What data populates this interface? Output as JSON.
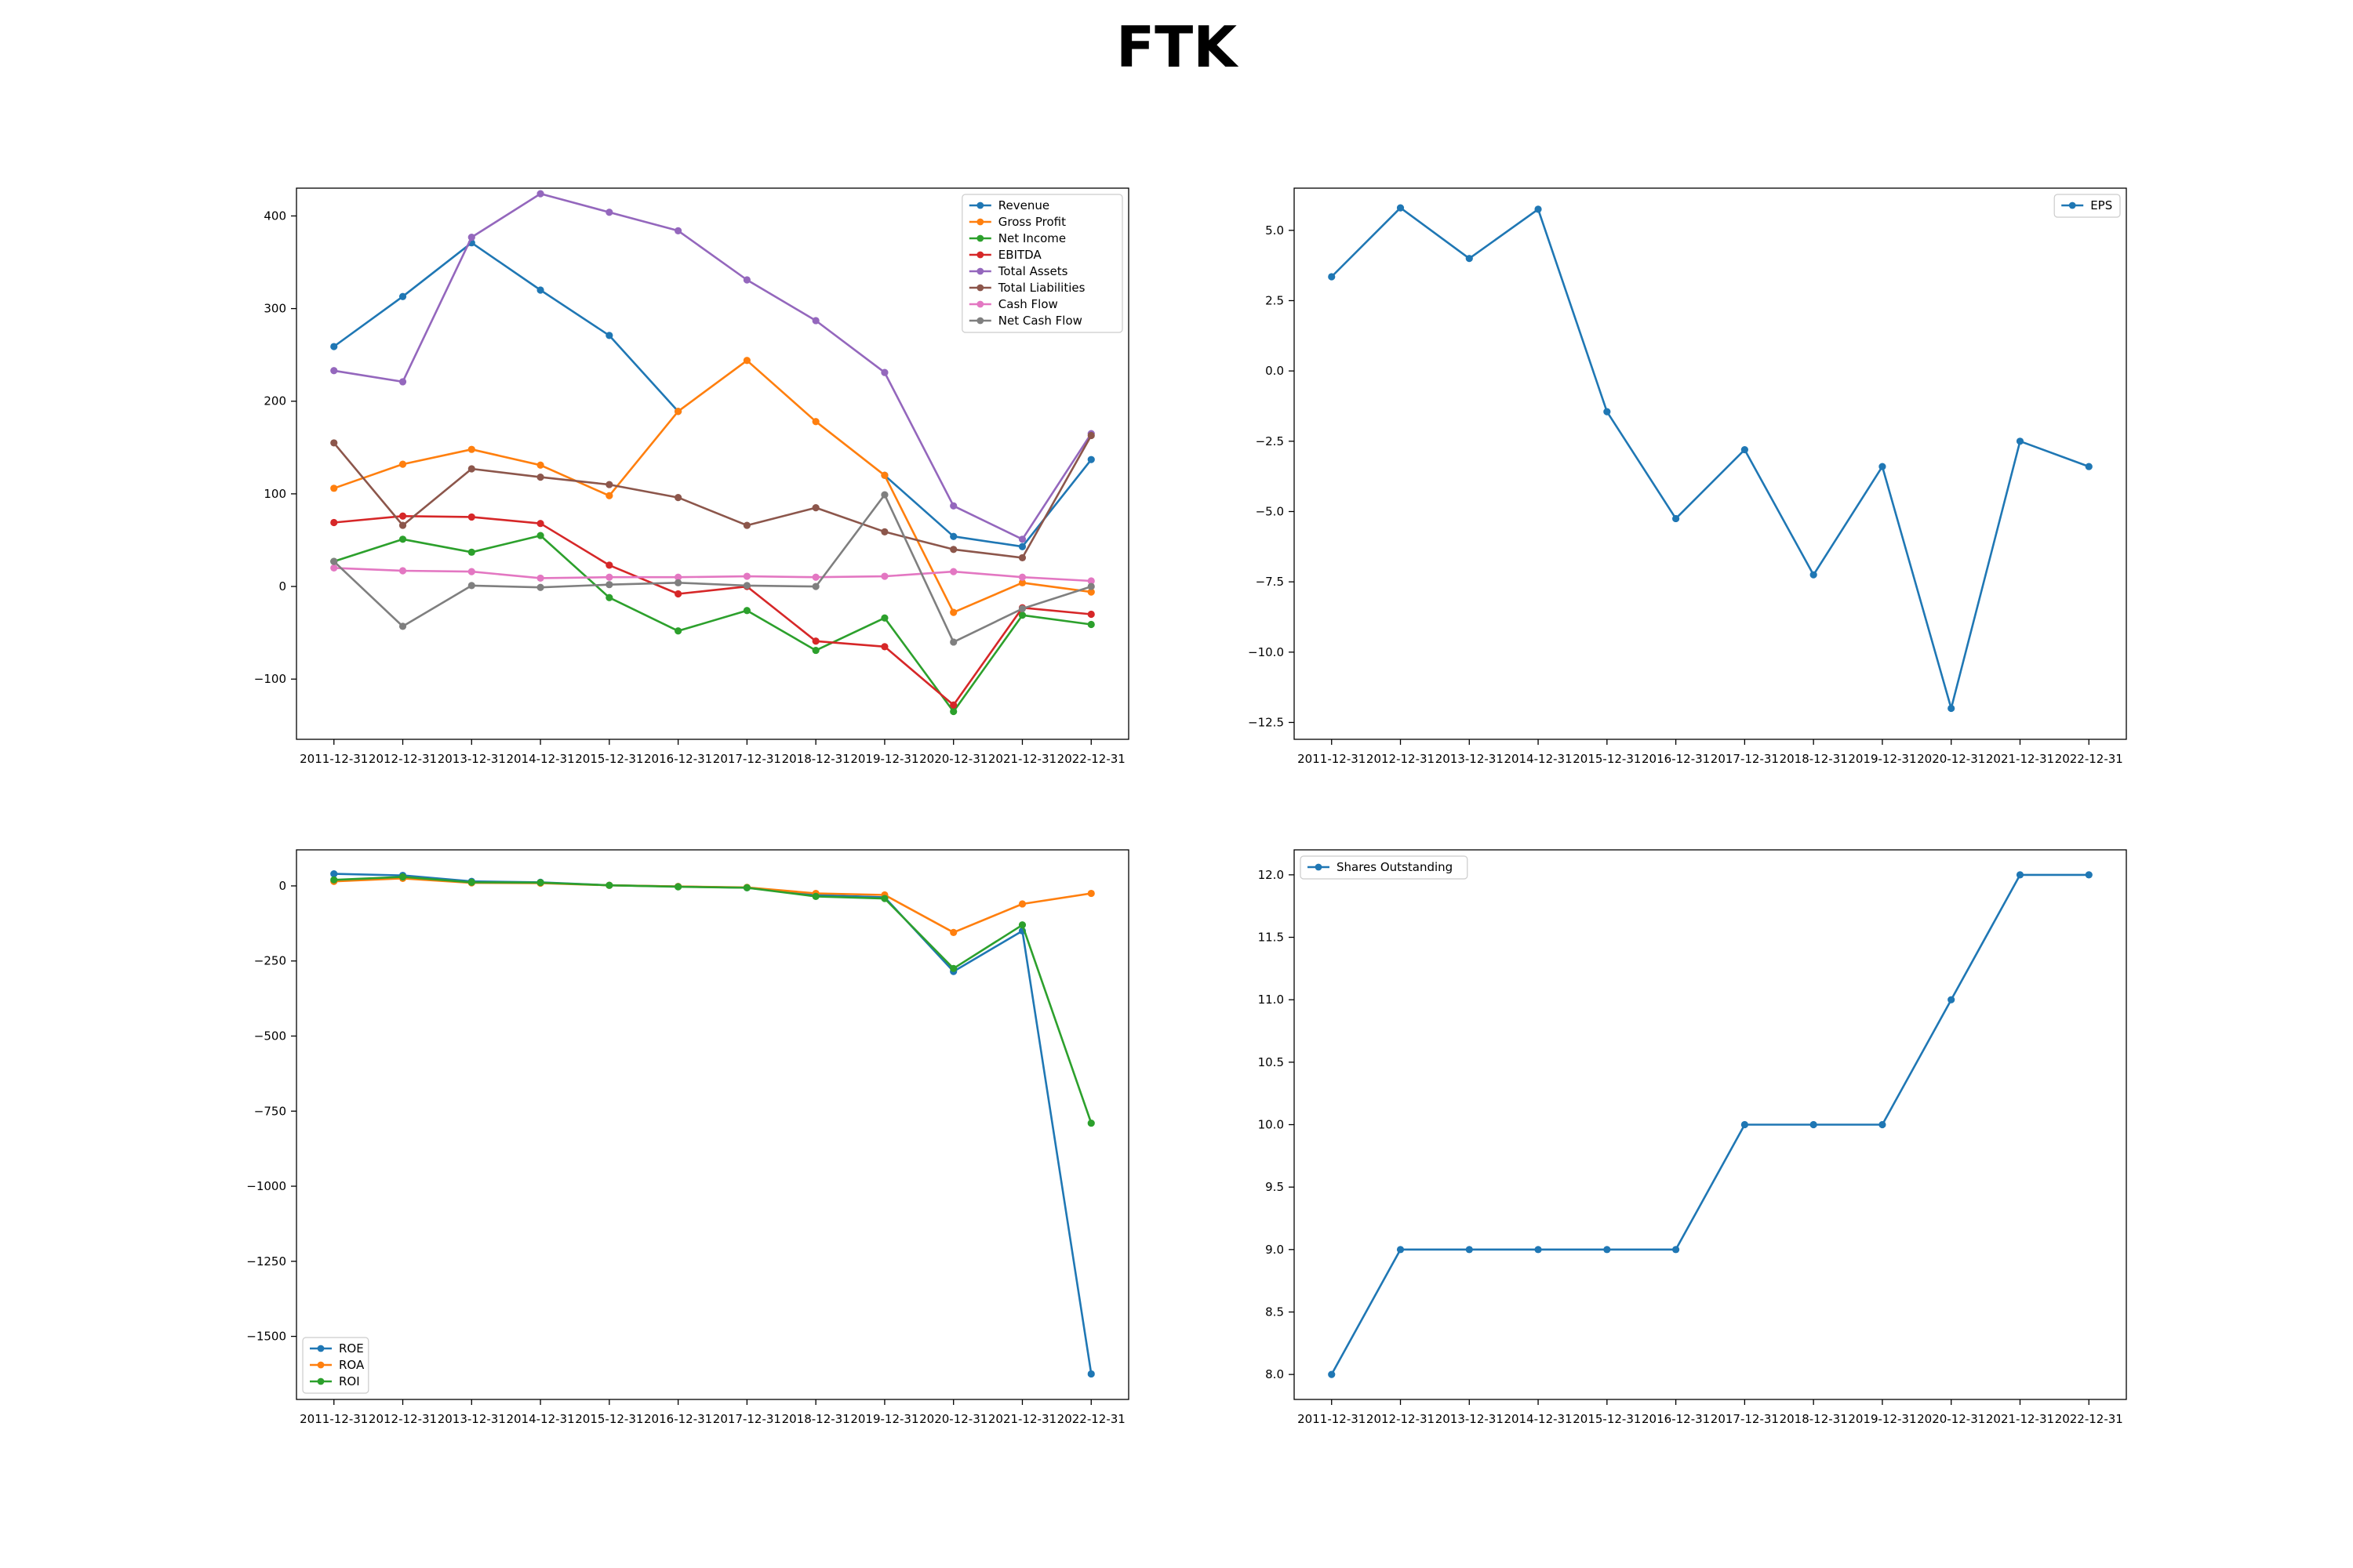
{
  "title": "FTK",
  "chart_data": [
    {
      "type": "line",
      "x": [
        "2011-12-31",
        "2012-12-31",
        "2013-12-31",
        "2014-12-31",
        "2015-12-31",
        "2016-12-31",
        "2017-12-31",
        "2018-12-31",
        "2019-12-31",
        "2020-12-31",
        "2021-12-31",
        "2022-12-31"
      ],
      "ylim": [
        -165,
        430
      ],
      "yticks": [
        -100,
        0,
        100,
        200,
        300,
        400
      ],
      "ytick_labels": [
        "−100",
        "0",
        "100",
        "200",
        "300",
        "400"
      ],
      "legend_loc": "upper right",
      "grid": false,
      "series": [
        {
          "name": "Revenue",
          "color": "#1f77b4",
          "values": [
            259,
            313,
            371,
            320,
            271,
            189,
            null,
            null,
            120,
            54,
            43,
            137
          ]
        },
        {
          "name": "Gross Profit",
          "color": "#ff7f0e",
          "values": [
            106,
            132,
            148,
            131,
            98,
            189,
            244,
            178,
            120,
            -28,
            4,
            -6
          ]
        },
        {
          "name": "Net Income",
          "color": "#2ca02c",
          "values": [
            27,
            51,
            37,
            55,
            -12,
            -48,
            -26,
            -69,
            -34,
            -135,
            -31,
            -41
          ]
        },
        {
          "name": "EBITDA",
          "color": "#d62728",
          "values": [
            69,
            76,
            75,
            68,
            23,
            -8,
            0,
            -59,
            -65,
            -128,
            -23,
            -30
          ]
        },
        {
          "name": "Total Assets",
          "color": "#9467bd",
          "values": [
            233,
            221,
            377,
            424,
            404,
            384,
            331,
            287,
            231,
            87,
            51,
            165
          ]
        },
        {
          "name": "Total Liabilities",
          "color": "#8c564b",
          "values": [
            155,
            66,
            127,
            118,
            110,
            96,
            66,
            85,
            59,
            40,
            31,
            163
          ]
        },
        {
          "name": "Cash Flow",
          "color": "#e377c2",
          "values": [
            20,
            17,
            16,
            9,
            10,
            10,
            11,
            10,
            11,
            16,
            10,
            6
          ]
        },
        {
          "name": "Net Cash Flow",
          "color": "#7f7f7f",
          "values": [
            27,
            -43,
            1,
            -1,
            2,
            4,
            1,
            0,
            99,
            -60,
            -24,
            0
          ]
        }
      ]
    },
    {
      "type": "line",
      "x": [
        "2011-12-31",
        "2012-12-31",
        "2013-12-31",
        "2014-12-31",
        "2015-12-31",
        "2016-12-31",
        "2017-12-31",
        "2018-12-31",
        "2019-12-31",
        "2020-12-31",
        "2021-12-31",
        "2022-12-31"
      ],
      "ylim": [
        -13.1,
        6.5
      ],
      "yticks": [
        -12.5,
        -10.0,
        -7.5,
        -5.0,
        -2.5,
        0.0,
        2.5,
        5.0
      ],
      "ytick_labels": [
        "−12.5",
        "−10.0",
        "−7.5",
        "−5.0",
        "−2.5",
        "0.0",
        "2.5",
        "5.0"
      ],
      "legend_loc": "upper right",
      "grid": false,
      "series": [
        {
          "name": "EPS",
          "color": "#1f77b4",
          "values": [
            3.35,
            5.8,
            4.0,
            5.75,
            -1.45,
            -5.25,
            -2.8,
            -7.25,
            -3.4,
            -12.0,
            -2.5,
            -3.4
          ]
        }
      ]
    },
    {
      "type": "line",
      "x": [
        "2011-12-31",
        "2012-12-31",
        "2013-12-31",
        "2014-12-31",
        "2015-12-31",
        "2016-12-31",
        "2017-12-31",
        "2018-12-31",
        "2019-12-31",
        "2020-12-31",
        "2021-12-31",
        "2022-12-31"
      ],
      "ylim": [
        -1710,
        120
      ],
      "yticks": [
        -1500,
        -1250,
        -1000,
        -750,
        -500,
        -250,
        0
      ],
      "ytick_labels": [
        "−1500",
        "−1250",
        "−1000",
        "−750",
        "−500",
        "−250",
        "0"
      ],
      "legend_loc": "lower left",
      "grid": false,
      "series": [
        {
          "name": "ROE",
          "color": "#1f77b4",
          "values": [
            40,
            35,
            15,
            12,
            2,
            -2,
            -6,
            -30,
            -38,
            -285,
            -150,
            -1625
          ]
        },
        {
          "name": "ROA",
          "color": "#ff7f0e",
          "values": [
            15,
            25,
            10,
            9,
            2,
            -2,
            -5,
            -25,
            -30,
            -155,
            -60,
            -25
          ]
        },
        {
          "name": "ROI",
          "color": "#2ca02c",
          "values": [
            20,
            30,
            12,
            11,
            2,
            -3,
            -6,
            -35,
            -42,
            -275,
            -130,
            -790
          ]
        }
      ]
    },
    {
      "type": "line",
      "x": [
        "2011-12-31",
        "2012-12-31",
        "2013-12-31",
        "2014-12-31",
        "2015-12-31",
        "2016-12-31",
        "2017-12-31",
        "2018-12-31",
        "2019-12-31",
        "2020-12-31",
        "2021-12-31",
        "2022-12-31"
      ],
      "ylim": [
        7.8,
        12.2
      ],
      "yticks": [
        8.0,
        8.5,
        9.0,
        9.5,
        10.0,
        10.5,
        11.0,
        11.5,
        12.0
      ],
      "ytick_labels": [
        "8.0",
        "8.5",
        "9.0",
        "9.5",
        "10.0",
        "10.5",
        "11.0",
        "11.5",
        "12.0"
      ],
      "legend_loc": "upper left",
      "grid": false,
      "series": [
        {
          "name": "Shares Outstanding",
          "color": "#1f77b4",
          "values": [
            8,
            9,
            9,
            9,
            9,
            9,
            10,
            10,
            10,
            11,
            12,
            12
          ]
        }
      ]
    }
  ]
}
